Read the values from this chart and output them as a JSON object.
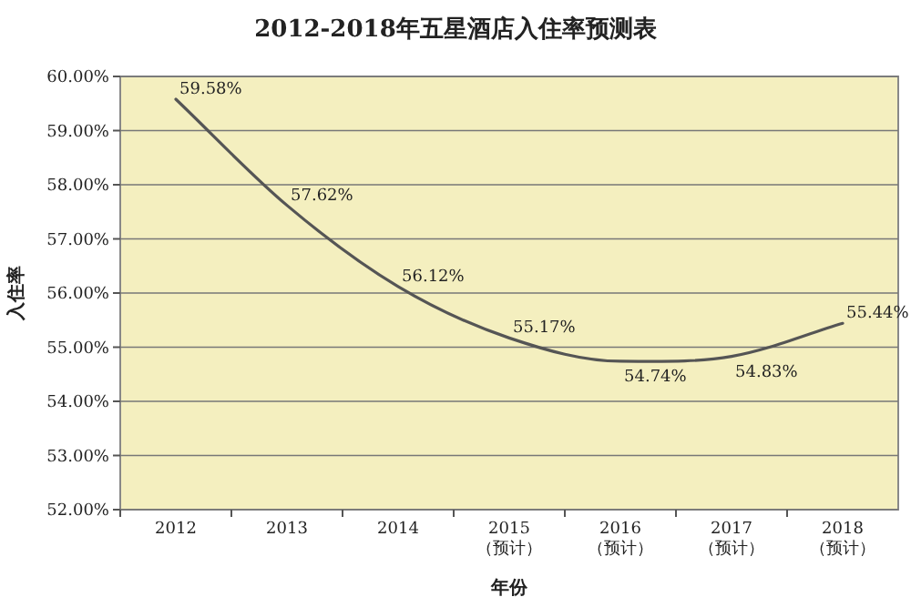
{
  "chart_data": {
    "type": "line",
    "title": "2012-2018年五星酒店入住率预测表",
    "xlabel": "年份",
    "ylabel": "入住率",
    "categories": [
      "2012",
      "2013",
      "2014",
      "2015\n（预计）",
      "2016\n（预计）",
      "2017\n（预计）",
      "2018\n（预计）"
    ],
    "series": [
      {
        "color": "#555555",
        "values": [
          59.58,
          57.62,
          56.12,
          55.17,
          54.74,
          54.83,
          55.44
        ]
      }
    ],
    "value_labels": [
      "59.58%",
      "57.62%",
      "56.12%",
      "55.17%",
      "54.74%",
      "54.83%",
      "55.44%"
    ],
    "ylim": [
      52,
      60
    ],
    "yticks": [
      {
        "value": 52,
        "label": "52.00%"
      },
      {
        "value": 53,
        "label": "53.00%"
      },
      {
        "value": 54,
        "label": "54.00%"
      },
      {
        "value": 55,
        "label": "55.00%"
      },
      {
        "value": 56,
        "label": "56.00%"
      },
      {
        "value": 57,
        "label": "57.00%"
      },
      {
        "value": 58,
        "label": "58.00%"
      },
      {
        "value": 59,
        "label": "59.00%"
      },
      {
        "value": 60,
        "label": "60.00%"
      }
    ],
    "grid": "y",
    "marker": "none",
    "line_style": "solid"
  }
}
